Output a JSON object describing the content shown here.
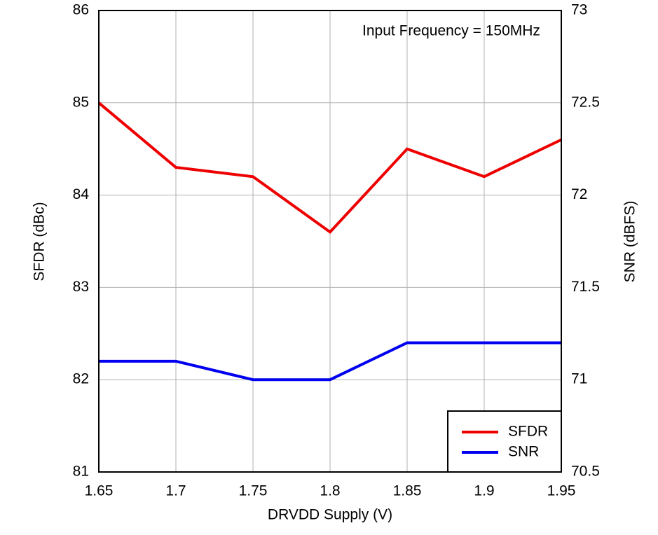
{
  "chart_data": {
    "type": "line",
    "annotation": "Input Frequency = 150MHz",
    "x_label": "DRVDD Supply (V)",
    "y_label": "SFDR (dBc)",
    "y2_label": "SNR (dBFS)",
    "x": [
      1.65,
      1.7,
      1.75,
      1.8,
      1.85,
      1.9,
      1.95
    ],
    "xlim": [
      1.65,
      1.95
    ],
    "xticks": [
      1.65,
      1.7,
      1.75,
      1.8,
      1.85,
      1.9,
      1.95
    ],
    "ylim": [
      81,
      86
    ],
    "yticks": [
      81,
      82,
      83,
      84,
      85,
      86
    ],
    "y2lim": [
      70.5,
      73
    ],
    "y2ticks": [
      70.5,
      71,
      71.5,
      72,
      72.5,
      73
    ],
    "grid": true,
    "legend": "lower right",
    "series": [
      {
        "name": "SFDR",
        "color": "#ee0000",
        "values": [
          85,
          84.3,
          84.2,
          83.6,
          84.5,
          84.2,
          84.6
        ]
      },
      {
        "name": "SNR",
        "color": "#0000ee",
        "axis": "y2",
        "values": [
          71.1,
          71.1,
          71.0,
          71.0,
          71.2,
          71.2,
          71.2
        ]
      }
    ]
  }
}
